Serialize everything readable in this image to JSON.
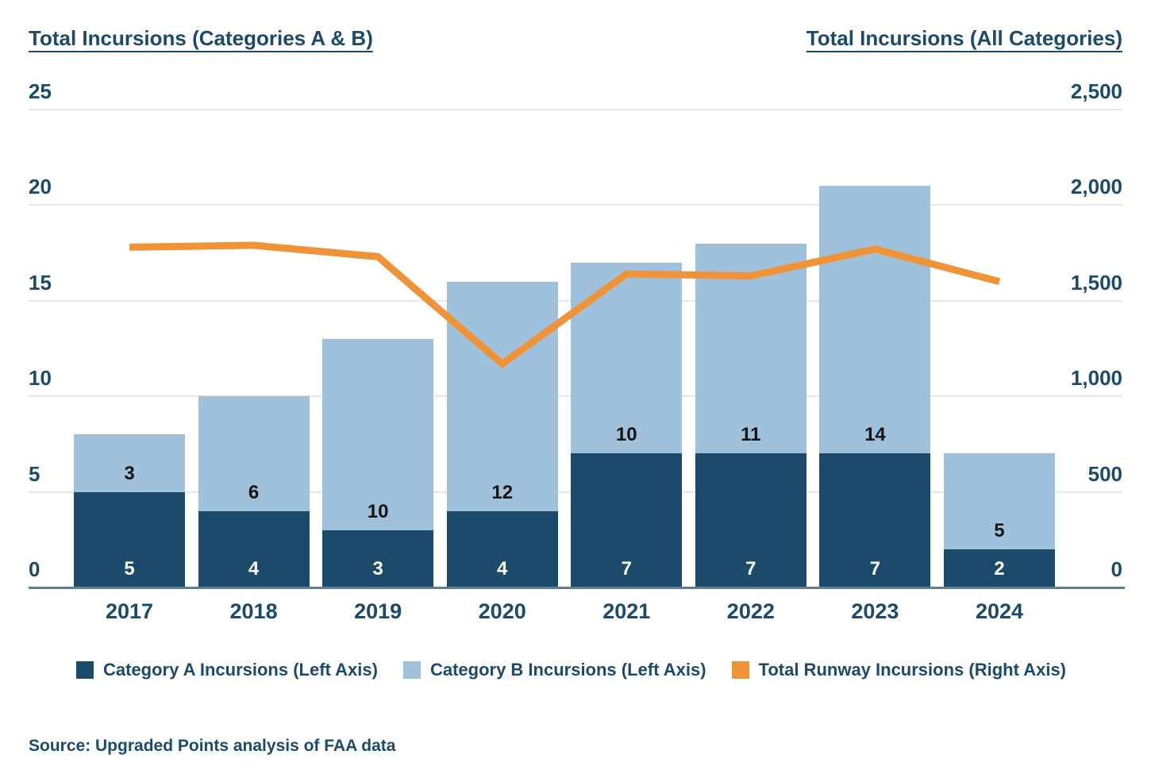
{
  "header": {
    "left_title": "Total Incursions (Categories A & B)",
    "right_title": "Total Incursions (All Categories)"
  },
  "chart_data": {
    "type": "bar",
    "subtype": "stacked-bars-with-line-overlay",
    "categories": [
      "2017",
      "2018",
      "2019",
      "2020",
      "2021",
      "2022",
      "2023",
      "2024"
    ],
    "series": [
      {
        "name": "Category A Incursions (Left Axis)",
        "type": "bar",
        "axis": "left",
        "color": "#1b4a6b",
        "values": [
          5,
          4,
          3,
          4,
          7,
          7,
          7,
          2
        ]
      },
      {
        "name": "Category B Incursions (Left Axis)",
        "type": "bar",
        "axis": "left",
        "color": "#a0c1dc",
        "values": [
          3,
          6,
          10,
          12,
          10,
          11,
          14,
          5
        ]
      },
      {
        "name": "Total Runway Incursions (Right Axis)",
        "type": "line",
        "axis": "right",
        "color": "#ef9338",
        "values": [
          1780,
          1790,
          1730,
          1170,
          1640,
          1630,
          1770,
          1600
        ]
      }
    ],
    "stacked": true,
    "grid": true,
    "legend_position": "bottom",
    "title": "",
    "xlabel": "",
    "ylabel": "",
    "left_axis": {
      "title": "Total Incursions (Categories A & B)",
      "tick_values": [
        0,
        5,
        10,
        15,
        20,
        25
      ],
      "tick_labels": [
        "0",
        "5",
        "10",
        "15",
        "20",
        "25"
      ],
      "range": [
        0,
        25
      ]
    },
    "right_axis": {
      "title": "Total Incursions (All Categories)",
      "tick_values": [
        0,
        500,
        1000,
        1500,
        2000,
        2500
      ],
      "tick_labels": [
        "0",
        "500",
        "1,000",
        "1,500",
        "2,000",
        "2,500"
      ],
      "range": [
        0,
        2500
      ]
    }
  },
  "legend": {
    "items": [
      {
        "label": "Category A Incursions (Left Axis)",
        "color": "#1b4a6b"
      },
      {
        "label": "Category B Incursions (Left Axis)",
        "color": "#a0c1dc"
      },
      {
        "label": "Total Runway Incursions (Right Axis)",
        "color": "#ef9338"
      }
    ]
  },
  "source": {
    "text": "Source: Upgraded Points analysis of FAA data"
  },
  "colors": {
    "text_navy": "#1b4a6b",
    "gridline": "#e3e8ed",
    "baseline": "#5c7e96",
    "bar_label_dark": "#141414",
    "bar_label_light": "#ffffff"
  }
}
